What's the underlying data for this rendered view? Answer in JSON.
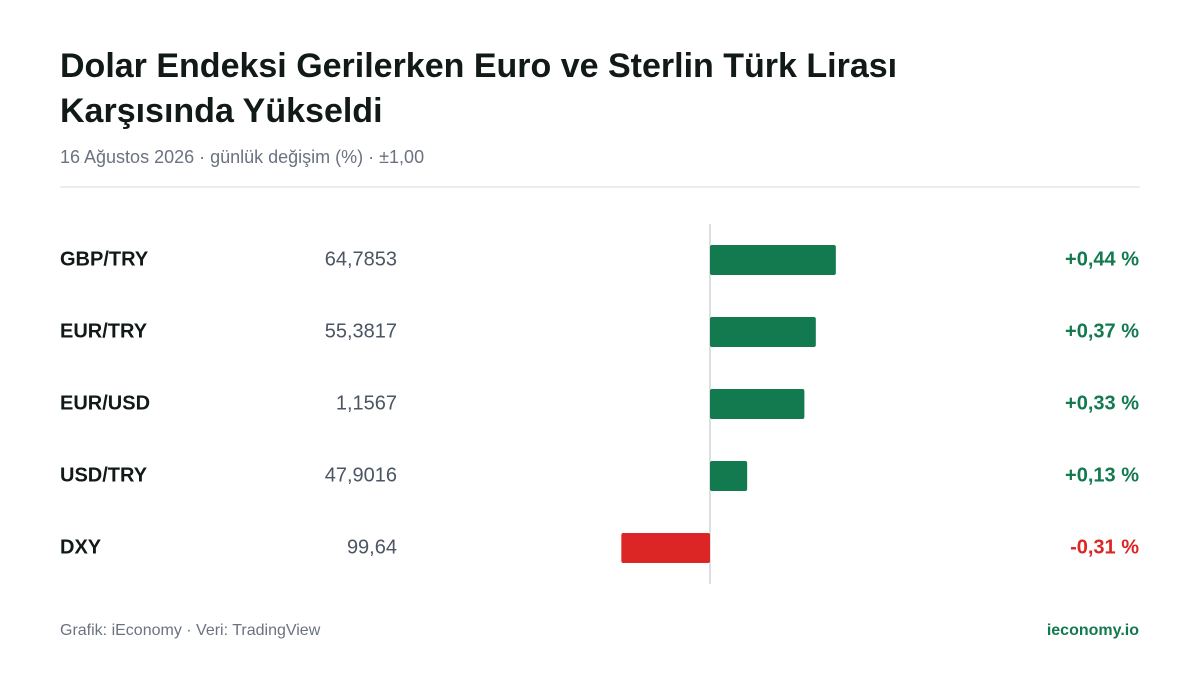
{
  "chart_data": {
    "type": "diverging-bar",
    "title": [
      "Dolar Endeksi Gerilerken Euro ve Sterlin Türk Lirası",
      "Karşısında Yükseldi"
    ],
    "subtitle": "16 Ağustos 2026 · günlük değişim (%) · ±1,00",
    "categories": [
      "GBP/TRY",
      "EUR/TRY",
      "EUR/USD",
      "USD/TRY",
      "DXY"
    ],
    "rates": [
      "64,7853",
      "55,3817",
      "1,1567",
      "47,9016",
      "99,64"
    ],
    "values": [
      0.44,
      0.37,
      0.33,
      0.13,
      -0.31
    ],
    "value_labels": [
      "+0,44 %",
      "+0,37 %",
      "+0,33 %",
      "+0,13 %",
      "-0,31 %"
    ],
    "positive_color": "#137a4f",
    "negative_color": "#dc2626",
    "xlim": [
      -1,
      1
    ],
    "source": "Grafik: iEconomy · Veri: TradingView",
    "brand": "ieconomy.io"
  }
}
